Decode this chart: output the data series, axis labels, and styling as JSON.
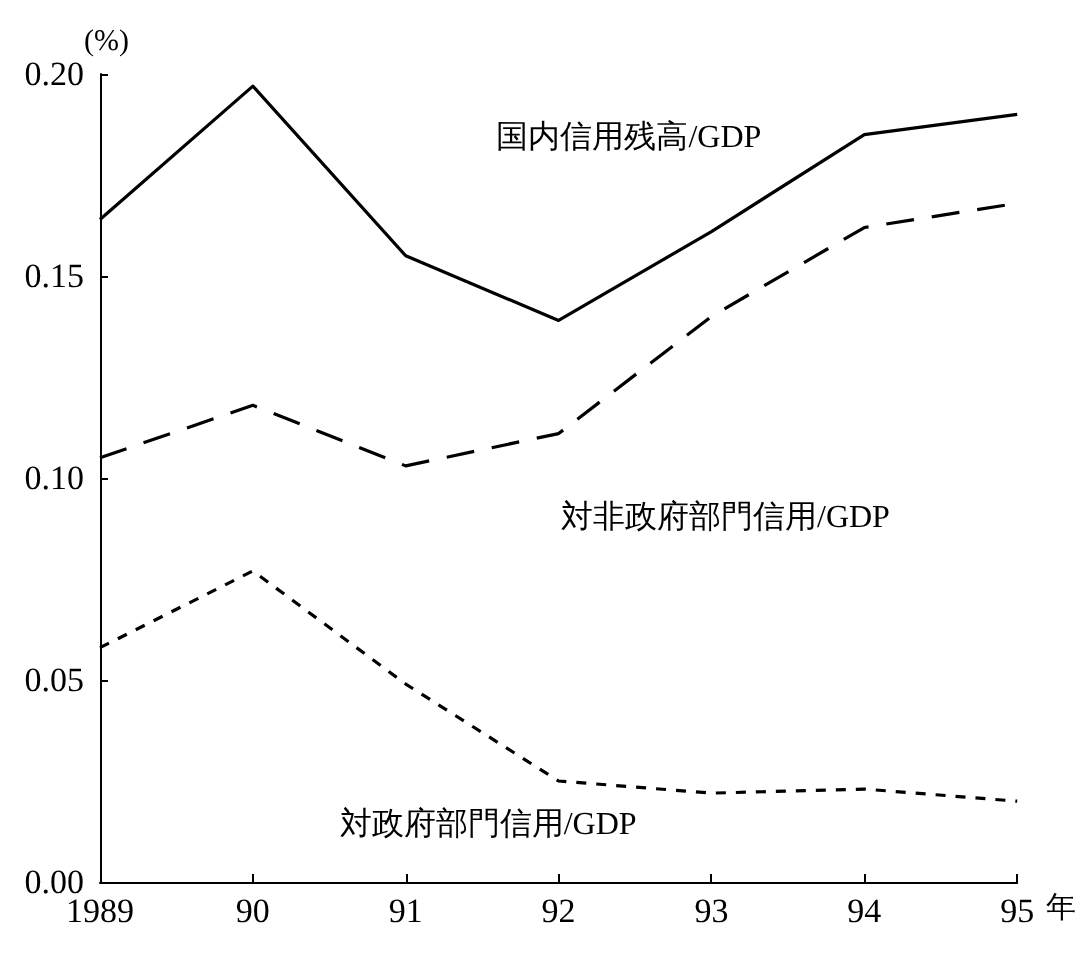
{
  "chart_data": {
    "type": "line",
    "ylabel": "(%)",
    "xlabel": "年",
    "categories": [
      "1989",
      "90",
      "91",
      "92",
      "93",
      "94",
      "95"
    ],
    "series": [
      {
        "name": "国内信用残高/GDP",
        "color": "#000000",
        "line_style": "solid",
        "values": [
          0.164,
          0.197,
          0.155,
          0.139,
          0.161,
          0.185,
          0.19
        ]
      },
      {
        "name": "対非政府部門信用/GDP",
        "color": "#000000",
        "line_style": "dashed",
        "values": [
          0.105,
          0.118,
          0.103,
          0.111,
          0.14,
          0.162,
          0.168
        ]
      },
      {
        "name": "対政府部門信用/GDP",
        "color": "#000000",
        "line_style": "dotted",
        "values": [
          0.058,
          0.077,
          0.049,
          0.025,
          0.022,
          0.023,
          0.02
        ]
      }
    ],
    "ylim": [
      0,
      0.2
    ],
    "yticks": [
      {
        "value": 0,
        "label": "0.00"
      },
      {
        "value": 0.05,
        "label": "0.05"
      },
      {
        "value": 0.1,
        "label": "0.10"
      },
      {
        "value": 0.15,
        "label": "0.15"
      },
      {
        "value": 0.2,
        "label": "0.20"
      }
    ],
    "grid": false,
    "legend": false,
    "marker": "none"
  }
}
